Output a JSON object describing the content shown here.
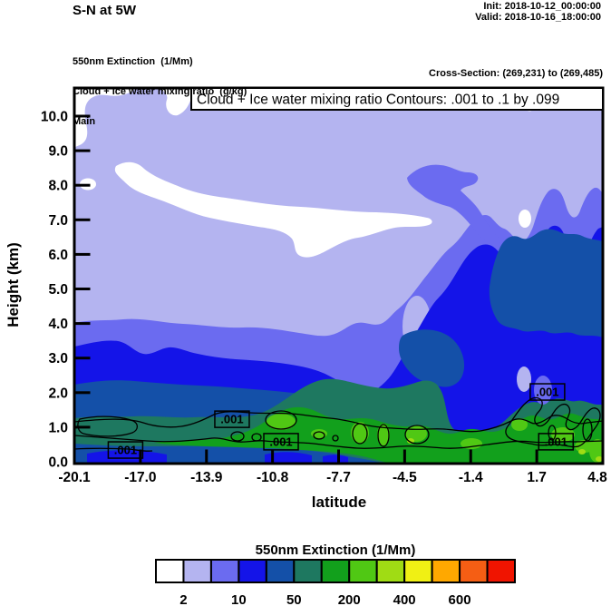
{
  "header": {
    "title": "S-N at 5W",
    "init": "Init: 2018-10-12_00:00:00",
    "valid": "Valid: 2018-10-16_18:00:00",
    "legend_lines": [
      "550nm Extinction  (1/Mm)",
      "Cloud + Ice water mixing ratio  (g/kg)",
      "Main"
    ],
    "cross_section": "Cross-Section: (269,231) to (269,485)"
  },
  "plot": {
    "title": "Cloud + Ice water mixing ratio Contours: .001 to .1 by .099",
    "xlabel": "latitude",
    "ylabel": "Height (km)",
    "x_tick_labels": [
      "-20.1",
      "-17.0",
      "-13.9",
      "-10.8",
      "-7.7",
      "-4.5",
      "-1.4",
      "1.7",
      "4.8"
    ],
    "y_tick_labels": [
      "0.0",
      "1.0",
      "2.0",
      "3.0",
      "4.0",
      "5.0",
      "6.0",
      "7.0",
      "8.0",
      "9.0",
      "10.0"
    ]
  },
  "colorbar": {
    "title": "550nm Extinction  (1/Mm)",
    "tick_labels": [
      "2",
      "10",
      "50",
      "200",
      "400",
      "600"
    ],
    "label_boundary_indices": [
      1,
      3,
      5,
      7,
      9,
      11
    ],
    "colors": [
      "#ffffff",
      "#b4b4f0",
      "#6b6bf0",
      "#1414e8",
      "#1450a8",
      "#1e7860",
      "#12a01c",
      "#50c814",
      "#a0dc14",
      "#f0f014",
      "#ffa800",
      "#f55e14",
      "#f01400"
    ]
  },
  "chart_data": {
    "type": "filled_contour_cross_section",
    "title": "Cloud + Ice water mixing ratio Contours: .001 to .1 by .099",
    "xlabel": "latitude",
    "ylabel": "Height (km)",
    "xlim": [
      -20.1,
      4.8
    ],
    "ylim": [
      0,
      10.9
    ],
    "x_ticks": [
      -20.1,
      -17.0,
      -13.9,
      -10.8,
      -7.7,
      -4.5,
      -1.4,
      1.7,
      4.8
    ],
    "y_ticks": [
      0,
      1,
      2,
      3,
      4,
      5,
      6,
      7,
      8,
      9,
      10
    ],
    "shaded_field": {
      "name": "550nm Extinction",
      "units": "1/Mm",
      "labeled_levels": [
        2,
        10,
        50,
        200,
        400,
        600
      ],
      "palette": [
        "#ffffff",
        "#b4b4f0",
        "#6b6bf0",
        "#1414e8",
        "#1450a8",
        "#1e7860",
        "#12a01c",
        "#50c814",
        "#a0dc14",
        "#f0f014",
        "#ffa800",
        "#f55e14",
        "#f01400"
      ]
    },
    "contour_field": {
      "name": "Cloud + Ice water mixing ratio",
      "units": "g/kg",
      "levels": [
        0.001,
        0.1
      ]
    },
    "contour_labels": [
      {
        "text": ".001",
        "lat": -17.7,
        "height_km": 0.34
      },
      {
        "text": ".001",
        "lat": -12.7,
        "height_km": 1.23
      },
      {
        "text": ".001",
        "lat": -10.4,
        "height_km": 0.58
      },
      {
        "text": ".001",
        "lat": 2.1,
        "height_km": 2.02
      },
      {
        "text": ".001",
        "lat": 2.5,
        "height_km": 0.58
      }
    ],
    "approx_shading_structure": {
      "lat_samples": [
        -20,
        -18,
        -16,
        -14,
        -12,
        -10,
        -8,
        -6,
        -4,
        -2,
        0,
        2,
        4
      ],
      "level_top_height_km": {
        "violet_ge10": [
          4.0,
          4.1,
          4.0,
          3.9,
          4.0,
          3.9,
          3.7,
          4.3,
          8.3,
          6.3,
          6.8,
          7.9,
          7.7
        ],
        "blue": [
          3.4,
          3.3,
          3.2,
          3.1,
          3.1,
          3.0,
          2.9,
          3.3,
          3.8,
          5.6,
          5.8,
          6.7,
          6.1
        ],
        "darkblue_ge50": [
          2.3,
          2.4,
          2.3,
          2.2,
          2.2,
          2.1,
          1.6,
          1.3,
          3.8,
          3.7,
          6.6,
          6.5,
          6.5
        ],
        "teal": [
          1.3,
          1.3,
          1.3,
          1.3,
          1.3,
          1.4,
          1.8,
          2.4,
          2.2,
          1.1,
          1.5,
          1.8,
          1.7
        ],
        "green_ge200": [
          null,
          0.6,
          0.6,
          0.7,
          0.7,
          1.4,
          1.3,
          1.3,
          1.2,
          1.0,
          1.1,
          1.3,
          1.3
        ],
        "bright_green": [
          null,
          null,
          null,
          null,
          null,
          1.3,
          0.9,
          0.9,
          0.9,
          0.8,
          0.7,
          0.9,
          1.0
        ]
      },
      "white_lt2_regions": [
        {
          "lat": [
            -20.1,
            -18.9
          ],
          "height_km": [
            9.1,
            10.9
          ]
        },
        {
          "lat": [
            -18.6,
            -3.4
          ],
          "height_km": [
            5.8,
            8.6
          ]
        },
        {
          "lat": [
            -19.8,
            -19.1
          ],
          "height_km": [
            7.9,
            8.3
          ]
        },
        {
          "lat": [
            0.7,
            1.3
          ],
          "height_km": [
            6.8,
            7.3
          ]
        },
        {
          "lat": [
            0.0,
            0.6
          ],
          "height_km": [
            10.2,
            10.5
          ]
        }
      ]
    }
  }
}
